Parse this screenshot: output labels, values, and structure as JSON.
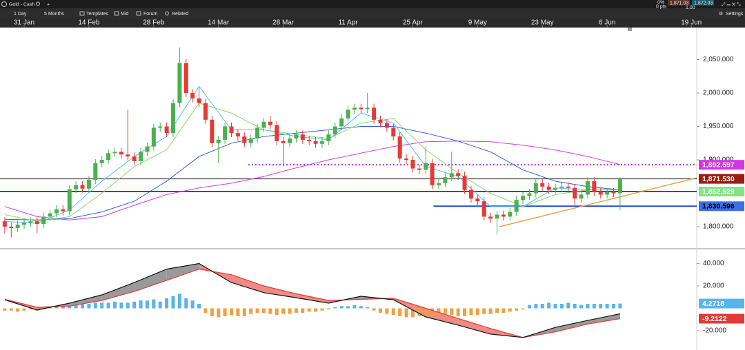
{
  "toolbar": {
    "instrument": "Gold - Cash",
    "buttons": [
      "1 Day",
      "5 Months",
      "Templates",
      "Mid",
      "Forum",
      "Related"
    ],
    "settings": "Settings",
    "quote": {
      "change_pct": "0%",
      "change_pts": "0 pts",
      "sell": "1,871.03",
      "spread": "1.00",
      "buy": "1,872.03"
    }
  },
  "chart_data": [
    {
      "type": "candlestick",
      "up_color": "#4caf50",
      "down_color": "#e53935",
      "xlim": [
        -3.73,
        103.83
      ],
      "xticks": [
        {
          "value": 0,
          "label": "31 Jan"
        },
        {
          "value": 10,
          "label": "14 Feb"
        },
        {
          "value": 20,
          "label": "28 Feb"
        },
        {
          "value": 30,
          "label": "14 Mar"
        },
        {
          "value": 40,
          "label": "28 Mar"
        },
        {
          "value": 50,
          "label": "11 Apr"
        },
        {
          "value": 60,
          "label": "25 Apr"
        },
        {
          "value": 70,
          "label": "9 May"
        },
        {
          "value": 80,
          "label": "23 May"
        },
        {
          "value": 90,
          "label": "6 Jun"
        },
        {
          "value": 103,
          "label": "19 Jun"
        }
      ],
      "ylim": [
        1768,
        2098
      ],
      "yticks": [
        {
          "value": 1800,
          "label": "1,800.000"
        },
        {
          "value": 1900,
          "label": "1,900.000"
        },
        {
          "value": 1950,
          "label": "1,950.000"
        },
        {
          "value": 2000,
          "label": "2,000.000"
        },
        {
          "value": 2050,
          "label": "2,050.000"
        }
      ],
      "candles": {
        "x": [
          -3,
          -2,
          -1,
          0,
          1,
          2,
          3,
          4,
          5,
          6,
          7,
          8,
          9,
          10,
          11,
          12,
          13,
          14,
          15,
          16,
          17,
          18,
          19,
          20,
          21,
          22,
          23,
          24,
          25,
          26,
          27,
          28,
          29,
          30,
          31,
          32,
          33,
          34,
          35,
          36,
          37,
          38,
          39,
          40,
          41,
          42,
          43,
          44,
          45,
          46,
          47,
          48,
          49,
          50,
          51,
          52,
          53,
          54,
          55,
          56,
          57,
          58,
          59,
          60,
          61,
          62,
          63,
          64,
          65,
          66,
          67,
          68,
          69,
          70,
          71,
          72,
          73,
          74,
          75,
          76,
          77,
          78,
          79,
          80,
          81,
          82,
          83,
          84,
          85,
          86,
          87,
          88,
          89,
          90,
          91,
          92
        ],
        "open": [
          1808,
          1800,
          1798,
          1803,
          1806,
          1808,
          1804,
          1815,
          1820,
          1826,
          1823,
          1856,
          1862,
          1857,
          1870,
          1895,
          1900,
          1910,
          1912,
          1908,
          1905,
          1898,
          1912,
          1920,
          1948,
          1950,
          1940,
          1985,
          2045,
          2000,
          1992,
          1985,
          1960,
          1925,
          1930,
          1950,
          1940,
          1935,
          1925,
          1932,
          1948,
          1957,
          1952,
          1928,
          1925,
          1932,
          1938,
          1930,
          1928,
          1924,
          1928,
          1938,
          1950,
          1962,
          1975,
          1978,
          1976,
          1978,
          1960,
          1955,
          1948,
          1935,
          1902,
          1900,
          1887,
          1885,
          1895,
          1862,
          1865,
          1874,
          1880,
          1876,
          1855,
          1842,
          1838,
          1815,
          1812,
          1818,
          1815,
          1822,
          1840,
          1846,
          1850,
          1865,
          1860,
          1855,
          1858,
          1860,
          1858,
          1842,
          1848,
          1868,
          1852,
          1848,
          1852,
          1850
        ],
        "high": [
          1814,
          1806,
          1809,
          1812,
          1814,
          1814,
          1821,
          1826,
          1832,
          1832,
          1862,
          1868,
          1868,
          1876,
          1901,
          1906,
          1916,
          1918,
          1918,
          1975,
          1911,
          1918,
          1926,
          1954,
          1956,
          1956,
          1991,
          2068,
          2051,
          2006,
          2008,
          1991,
          1966,
          1936,
          1956,
          1956,
          1946,
          1941,
          1938,
          1954,
          1963,
          1966,
          1958,
          1934,
          1938,
          1944,
          1944,
          1936,
          1934,
          1934,
          1944,
          1956,
          1968,
          1981,
          1984,
          1984,
          2000,
          1984,
          1966,
          1961,
          1954,
          1941,
          1908,
          1906,
          1893,
          1920,
          1901,
          1871,
          1880,
          1912,
          1886,
          1882,
          1861,
          1848,
          1844,
          1821,
          1824,
          1824,
          1828,
          1846,
          1852,
          1856,
          1871,
          1871,
          1866,
          1864,
          1866,
          1866,
          1864,
          1854,
          1874,
          1874,
          1858,
          1858,
          1858,
          1874
        ],
        "low": [
          1790,
          1784,
          1792,
          1797,
          1800,
          1790,
          1798,
          1809,
          1814,
          1817,
          1817,
          1850,
          1851,
          1851,
          1864,
          1889,
          1894,
          1904,
          1902,
          1899,
          1892,
          1892,
          1906,
          1914,
          1942,
          1934,
          1934,
          1979,
          1994,
          1986,
          1979,
          1954,
          1919,
          1895,
          1924,
          1934,
          1929,
          1919,
          1919,
          1926,
          1942,
          1946,
          1922,
          1890,
          1919,
          1926,
          1924,
          1922,
          1918,
          1918,
          1922,
          1932,
          1944,
          1956,
          1969,
          1970,
          1970,
          1954,
          1949,
          1942,
          1929,
          1896,
          1894,
          1881,
          1879,
          1879,
          1856,
          1856,
          1859,
          1868,
          1870,
          1849,
          1836,
          1832,
          1809,
          1806,
          1788,
          1809,
          1809,
          1816,
          1834,
          1840,
          1844,
          1854,
          1849,
          1849,
          1852,
          1852,
          1832,
          1836,
          1842,
          1846,
          1842,
          1842,
          1844,
          1825
        ],
        "close": [
          1800,
          1798,
          1803,
          1806,
          1808,
          1804,
          1815,
          1820,
          1826,
          1823,
          1856,
          1862,
          1857,
          1870,
          1895,
          1900,
          1910,
          1912,
          1908,
          1905,
          1898,
          1912,
          1920,
          1948,
          1950,
          1940,
          1985,
          2045,
          2000,
          1992,
          1985,
          1960,
          1925,
          1930,
          1950,
          1940,
          1935,
          1925,
          1932,
          1948,
          1957,
          1952,
          1928,
          1925,
          1932,
          1938,
          1930,
          1928,
          1924,
          1928,
          1938,
          1950,
          1962,
          1975,
          1978,
          1976,
          1978,
          1960,
          1955,
          1948,
          1935,
          1902,
          1900,
          1887,
          1885,
          1895,
          1862,
          1865,
          1874,
          1880,
          1876,
          1855,
          1842,
          1838,
          1815,
          1812,
          1818,
          1815,
          1822,
          1840,
          1846,
          1850,
          1865,
          1860,
          1855,
          1858,
          1860,
          1858,
          1842,
          1848,
          1868,
          1852,
          1848,
          1852,
          1850,
          1871
        ]
      },
      "line_x": [
        -3,
        2,
        7,
        12,
        17,
        22,
        27,
        32,
        37,
        42,
        47,
        52,
        57,
        62,
        67,
        72,
        77,
        82,
        87,
        92
      ],
      "lines": [
        {
          "color": "#d63ce0",
          "values": [
            1830,
            1815,
            1810,
            1815,
            1832,
            1848,
            1858,
            1865,
            1875,
            1888,
            1900,
            1910,
            1920,
            1927,
            1928,
            1927,
            1922,
            1915,
            1905,
            1893
          ]
        },
        {
          "color": "#2f5fd0",
          "values": [
            1811,
            1810,
            1812,
            1822,
            1838,
            1868,
            1905,
            1925,
            1935,
            1940,
            1945,
            1950,
            1950,
            1940,
            1928,
            1912,
            1885,
            1868,
            1860,
            1855
          ]
        },
        {
          "color": "#8bd96a",
          "values": [
            1818,
            1808,
            1815,
            1850,
            1890,
            1915,
            1985,
            1970,
            1945,
            1938,
            1932,
            1955,
            1962,
            1915,
            1880,
            1850,
            1830,
            1848,
            1855,
            1855
          ]
        },
        {
          "color": "#4fc3f7",
          "values": [
            1808,
            1805,
            1825,
            1868,
            1905,
            1935,
            2010,
            1945,
            1945,
            1935,
            1930,
            1970,
            1955,
            1890,
            1875,
            1830,
            1830,
            1858,
            1855,
            1855
          ]
        }
      ],
      "trendline": {
        "color": "#f0a040",
        "x": [
          73.4,
          103.8
        ],
        "y": [
          1800,
          1873
        ]
      },
      "levels": [
        {
          "value": 1892.597,
          "label": "1,892.597",
          "color": "#d633e6",
          "line_color": "#b030d8",
          "text_color": "#ffffff",
          "style": "dotted",
          "x0": 34.6
        },
        {
          "value": 1871.53,
          "label": "1,871.530",
          "color": "#9c1c10",
          "line_color": "#222222",
          "text_color": "#ffffff",
          "style": "solid"
        },
        {
          "value": 1852.529,
          "label": "1,852.529",
          "color": "#86e286",
          "line_color": "#1f4fd0",
          "text_color": "#ffffff",
          "style": "thick"
        },
        {
          "value": 1830.596,
          "label": "1,830.596",
          "color": "#3a6fe8",
          "line_color": "#1f4fd0",
          "text_color": "#000000",
          "style": "thick",
          "x0": 63.2
        }
      ]
    },
    {
      "type": "macd",
      "ylim": [
        -37.2,
        52.6
      ],
      "yticks": [
        {
          "value": 40,
          "label": "40.000"
        },
        {
          "value": 20,
          "label": "20.000"
        },
        {
          "value": -20,
          "label": "-20.000"
        }
      ],
      "histogram": [
        -2,
        -2,
        -3,
        -2,
        -1,
        -2,
        -1,
        1,
        2,
        2,
        3,
        3,
        4,
        4,
        5,
        5,
        5,
        6,
        5,
        5,
        6,
        7,
        7,
        8,
        6,
        9,
        11,
        13,
        9,
        7,
        4,
        -4,
        -7,
        -8,
        -7,
        -6,
        -7,
        -7,
        -5,
        -4,
        -4,
        -5,
        -6,
        -5,
        -5,
        -4,
        -4,
        -3,
        -3,
        -2,
        -1,
        1,
        2,
        2,
        3,
        2,
        1,
        -2,
        -4,
        -5,
        -6,
        -7,
        -8,
        -8,
        -7,
        -6,
        -7,
        -6,
        -5,
        -6,
        -7,
        -7,
        -6,
        -6,
        -5,
        -5,
        -4,
        -4,
        -3,
        -2,
        -1,
        3,
        4,
        4,
        5,
        4,
        4,
        5,
        4,
        3,
        4,
        4,
        4,
        4,
        4,
        4.2718
      ],
      "hist_up": "#5ab4ec",
      "hist_down": "#f0a040",
      "fill_above": "#9a9a9a",
      "fill_below": "#f08a84",
      "macd": {
        "color": "#111111",
        "values": [
          7.7,
          -1.5,
          4.6,
          12,
          23,
          35,
          40,
          23,
          14,
          9.5,
          4.6,
          10.8,
          7.7,
          -7.7,
          -15,
          -23,
          -26,
          -17,
          -10.8,
          -4.9
        ]
      },
      "signal": {
        "color": "#e53935",
        "values": [
          8,
          1,
          2,
          7,
          15,
          25,
          35,
          30,
          20,
          13,
          7,
          8,
          9,
          0,
          -9,
          -18,
          -26,
          -21,
          -14,
          -9.2
        ]
      },
      "levels": [
        {
          "value": 4.2718,
          "label": "4.2718",
          "color": "#5ab4ec",
          "text_color": "#ffffff",
          "style": "none"
        },
        {
          "value": -9.2122,
          "label": "-9.2122",
          "color": "#e53935",
          "text_color": "#ffffff",
          "style": "none"
        }
      ]
    }
  ]
}
